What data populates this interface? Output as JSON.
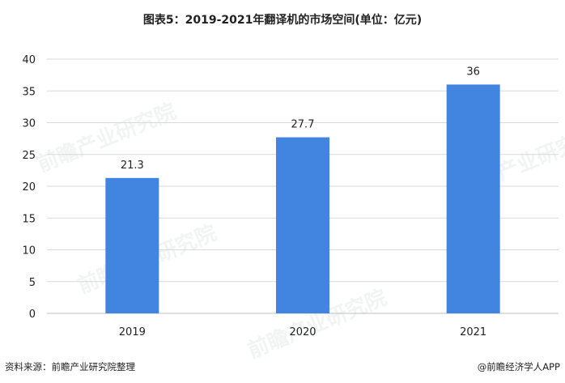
{
  "title": "图表5：2019-2021年翻译机的市场空间(单位：亿元)",
  "footer": {
    "source": "资料来源：前瞻产业研究院整理",
    "credit": "@前瞻经济学人APP"
  },
  "watermark_text": "前瞻产业研究院",
  "colors": {
    "bar": "#4285E1",
    "grid": "#d9d9d9",
    "axis": "#bfbfbf",
    "text": "#222222"
  },
  "chart_data": {
    "type": "bar",
    "title": "图表5：2019-2021年翻译机的市场空间(单位：亿元)",
    "categories": [
      "2019",
      "2020",
      "2021"
    ],
    "values": [
      21.3,
      27.7,
      36
    ],
    "data_labels": [
      "21.3",
      "27.7",
      "36"
    ],
    "y_ticks": [
      "0",
      "5",
      "10",
      "15",
      "20",
      "25",
      "30",
      "35",
      "40"
    ],
    "ylim": [
      0,
      40
    ],
    "xlabel": "",
    "ylabel": "",
    "grid": true,
    "legend": "none"
  }
}
